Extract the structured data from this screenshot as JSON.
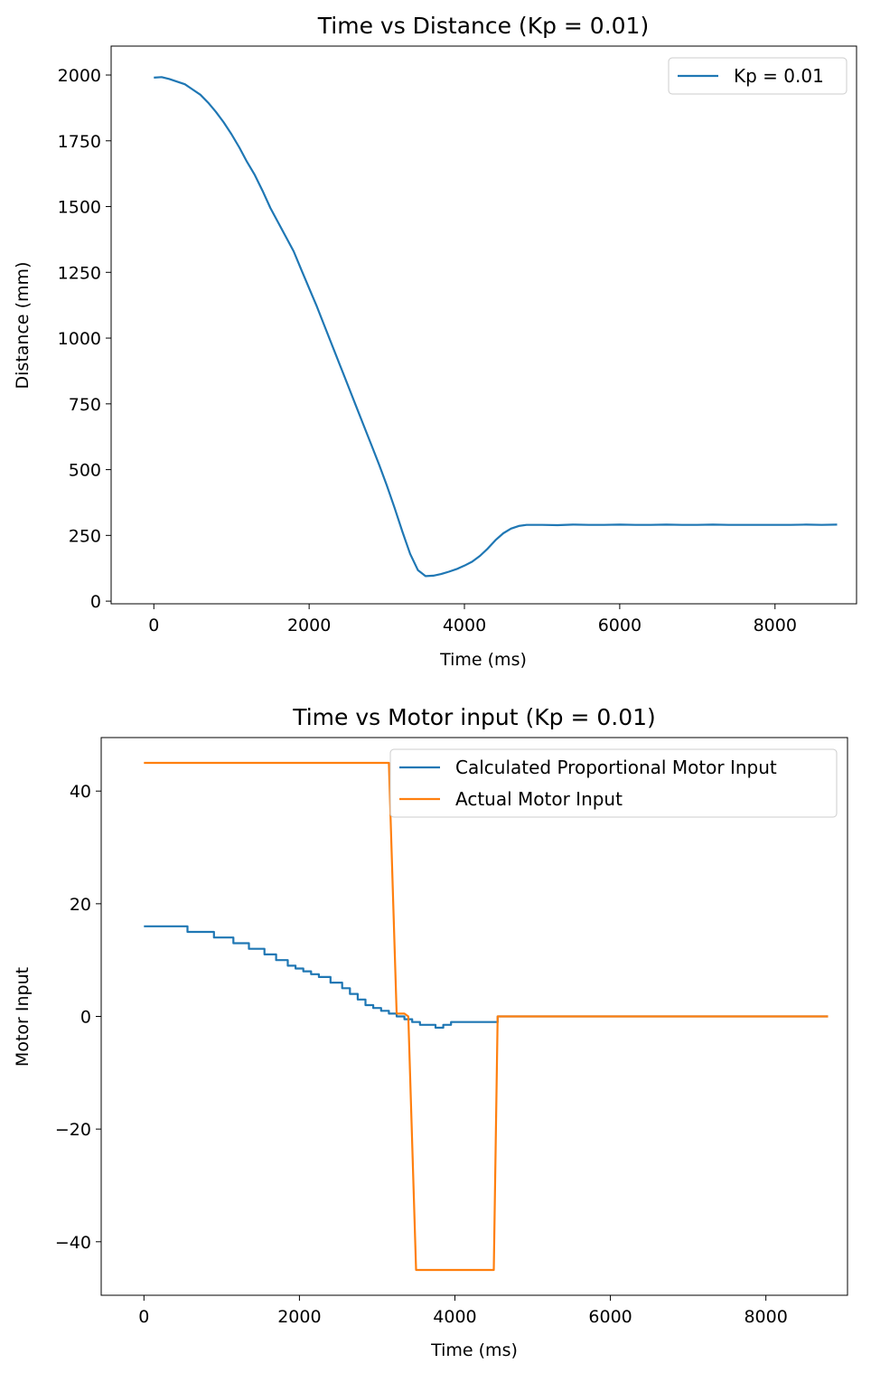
{
  "chart_data": [
    {
      "type": "line",
      "title": "Time vs Distance (Kp = 0.01)",
      "xlabel": "Time (ms)",
      "ylabel": "Distance (mm)",
      "xlim": [
        -550,
        9050
      ],
      "ylim": [
        -10,
        2110
      ],
      "xticks": [
        0,
        2000,
        4000,
        6000,
        8000
      ],
      "xtick_labels": [
        "0",
        "2000",
        "4000",
        "6000",
        "8000"
      ],
      "yticks": [
        0,
        250,
        500,
        750,
        1000,
        1250,
        1500,
        1750,
        2000
      ],
      "ytick_labels": [
        "0",
        "250",
        "500",
        "750",
        "1000",
        "1250",
        "1500",
        "1750",
        "2000"
      ],
      "grid": false,
      "legend_position": "top-right",
      "series": [
        {
          "name": "Kp = 0.01",
          "color": "#1f77b4",
          "x": [
            0,
            100,
            200,
            300,
            400,
            500,
            600,
            700,
            800,
            900,
            1000,
            1100,
            1200,
            1300,
            1400,
            1500,
            1600,
            1700,
            1800,
            1900,
            2000,
            2100,
            2200,
            2300,
            2400,
            2500,
            2600,
            2700,
            2800,
            2900,
            3000,
            3100,
            3200,
            3300,
            3400,
            3500,
            3600,
            3700,
            3800,
            3900,
            4000,
            4100,
            4200,
            4300,
            4400,
            4500,
            4600,
            4700,
            4800,
            4900,
            5000,
            5200,
            5400,
            5600,
            5800,
            6000,
            6200,
            6400,
            6600,
            6800,
            7000,
            7200,
            7400,
            7600,
            7800,
            8000,
            8200,
            8400,
            8600,
            8800
          ],
          "y": [
            1990,
            1992,
            1985,
            1975,
            1965,
            1945,
            1925,
            1895,
            1860,
            1820,
            1775,
            1725,
            1670,
            1620,
            1560,
            1495,
            1440,
            1385,
            1330,
            1260,
            1190,
            1120,
            1045,
            970,
            895,
            820,
            745,
            670,
            595,
            520,
            440,
            355,
            265,
            180,
            118,
            95,
            97,
            103,
            112,
            122,
            135,
            150,
            172,
            200,
            232,
            258,
            276,
            286,
            290,
            290,
            290,
            289,
            291,
            290,
            290,
            291,
            290,
            290,
            291,
            290,
            290,
            291,
            290,
            290,
            290,
            290,
            290,
            291,
            290,
            291
          ]
        }
      ]
    },
    {
      "type": "line",
      "title": "Time vs Motor input (Kp = 0.01)",
      "xlabel": "Time (ms)",
      "ylabel": "Motor Input",
      "xlim": [
        -550,
        9050
      ],
      "ylim": [
        -49.5,
        49.5
      ],
      "xticks": [
        0,
        2000,
        4000,
        6000,
        8000
      ],
      "xtick_labels": [
        "0",
        "2000",
        "4000",
        "6000",
        "8000"
      ],
      "yticks": [
        -40,
        -20,
        0,
        20,
        40
      ],
      "ytick_labels": [
        "−40",
        "−20",
        "0",
        "20",
        "40"
      ],
      "grid": false,
      "legend_position": "top-right",
      "series": [
        {
          "name": "Calculated Proportional Motor Input",
          "color": "#1f77b4",
          "x": [
            0,
            560,
            560,
            900,
            900,
            1150,
            1150,
            1350,
            1350,
            1550,
            1550,
            1700,
            1700,
            1850,
            1850,
            1950,
            1950,
            2050,
            2050,
            2150,
            2150,
            2250,
            2250,
            2400,
            2400,
            2550,
            2550,
            2650,
            2650,
            2750,
            2750,
            2850,
            2850,
            2950,
            2950,
            3050,
            3050,
            3150,
            3150,
            3250,
            3250,
            3350,
            3350,
            3450,
            3450,
            3550,
            3550,
            3750,
            3750,
            3850,
            3850,
            3950,
            3950,
            4550,
            4550,
            8800
          ],
          "y": [
            16,
            16,
            15,
            15,
            14,
            14,
            13,
            13,
            12,
            12,
            11,
            11,
            10,
            10,
            9,
            9,
            8.5,
            8.5,
            8,
            8,
            7.5,
            7.5,
            7,
            7,
            6,
            6,
            5,
            5,
            4,
            4,
            3,
            3,
            2,
            2,
            1.5,
            1.5,
            1,
            1,
            0.5,
            0.5,
            0,
            0,
            -0.5,
            -0.5,
            -1,
            -1,
            -1.5,
            -1.5,
            -2,
            -2,
            -1.5,
            -1.5,
            -1,
            -1,
            0,
            0
          ]
        },
        {
          "name": "Actual Motor Input",
          "color": "#ff7f0e",
          "x": [
            0,
            3150,
            3250,
            3350,
            3400,
            3500,
            4500,
            4550,
            8800
          ],
          "y": [
            45,
            45,
            0.5,
            0.5,
            0,
            -45,
            -45,
            0,
            0
          ]
        }
      ]
    }
  ]
}
